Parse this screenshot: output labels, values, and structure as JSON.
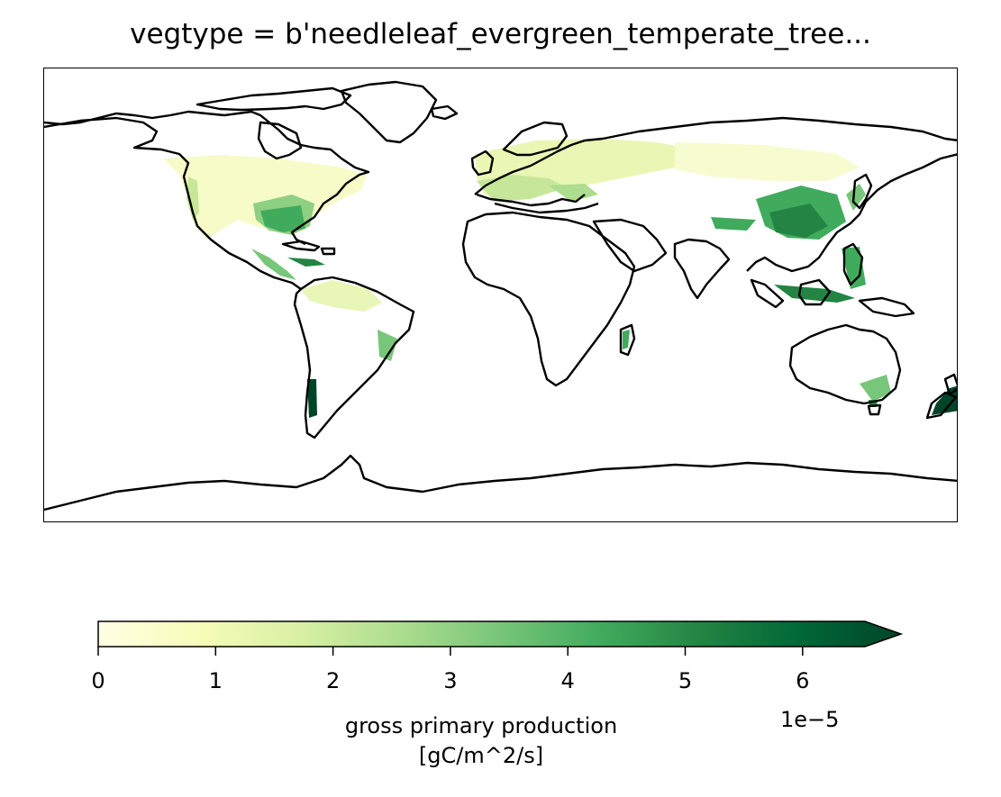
{
  "title": "vegtype = b'needleleaf_evergreen_temperate_tree...",
  "colorbar": {
    "ticks": [
      "0",
      "1",
      "2",
      "3",
      "4",
      "5",
      "6"
    ],
    "tick_values": [
      0,
      1,
      2,
      3,
      4,
      5,
      6
    ],
    "range": [
      0,
      6.5
    ],
    "extend": "max",
    "offset": "1e−5",
    "label_line1": "gross primary production",
    "label_line2": "[gC/m^2/s]",
    "colormap": "YlGn",
    "colors": [
      "#ffffe5",
      "#f7fcb9",
      "#d9f0a3",
      "#addd8e",
      "#78c679",
      "#41ab5d",
      "#238443",
      "#006837",
      "#004529"
    ]
  },
  "map": {
    "projection": "PlateCarree",
    "coastline_color": "#000000"
  }
}
